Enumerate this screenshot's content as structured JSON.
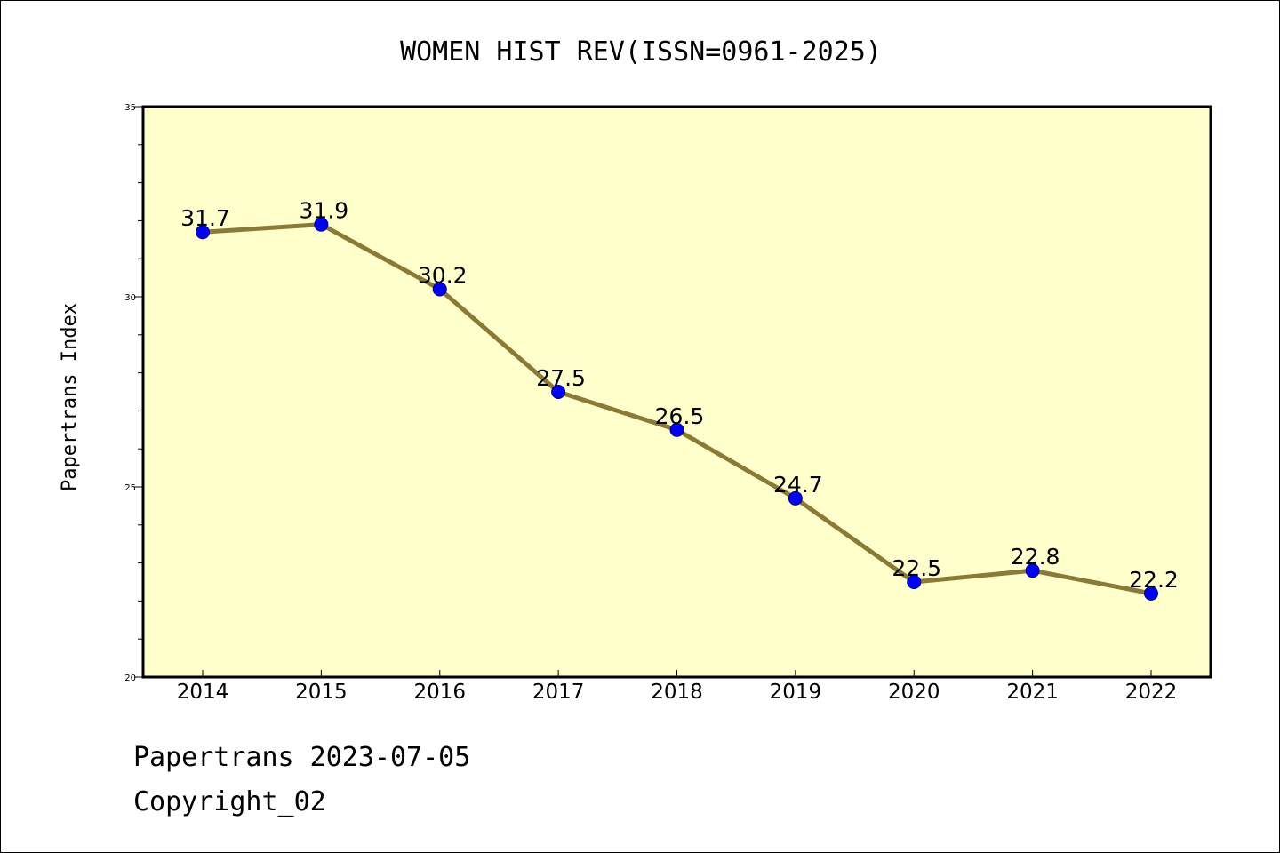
{
  "colors": {
    "plot_background": "#ffffcc",
    "line": "#8b7a35",
    "marker": "#0000ff",
    "marker_edge": "#000080"
  },
  "footer": {
    "line1": "Papertrans 2023-07-05",
    "line2": "Copyright_02"
  },
  "chart_data": {
    "type": "line",
    "title": "WOMEN HIST REV(ISSN=0961-2025)",
    "xlabel": "",
    "ylabel": "Papertrans Index",
    "categories": [
      "2014",
      "2015",
      "2016",
      "2017",
      "2018",
      "2019",
      "2020",
      "2021",
      "2022"
    ],
    "values": [
      31.7,
      31.9,
      30.2,
      27.5,
      26.5,
      24.7,
      22.5,
      22.8,
      22.2
    ],
    "data_labels": [
      "31.7",
      "31.9",
      "30.2",
      "27.5",
      "26.5",
      "24.7",
      "22.5",
      "22.8",
      "22.2"
    ],
    "ylim": [
      20,
      35
    ],
    "yticks": [
      "20",
      "25",
      "30",
      "35"
    ],
    "grid": false,
    "legend": "none"
  }
}
